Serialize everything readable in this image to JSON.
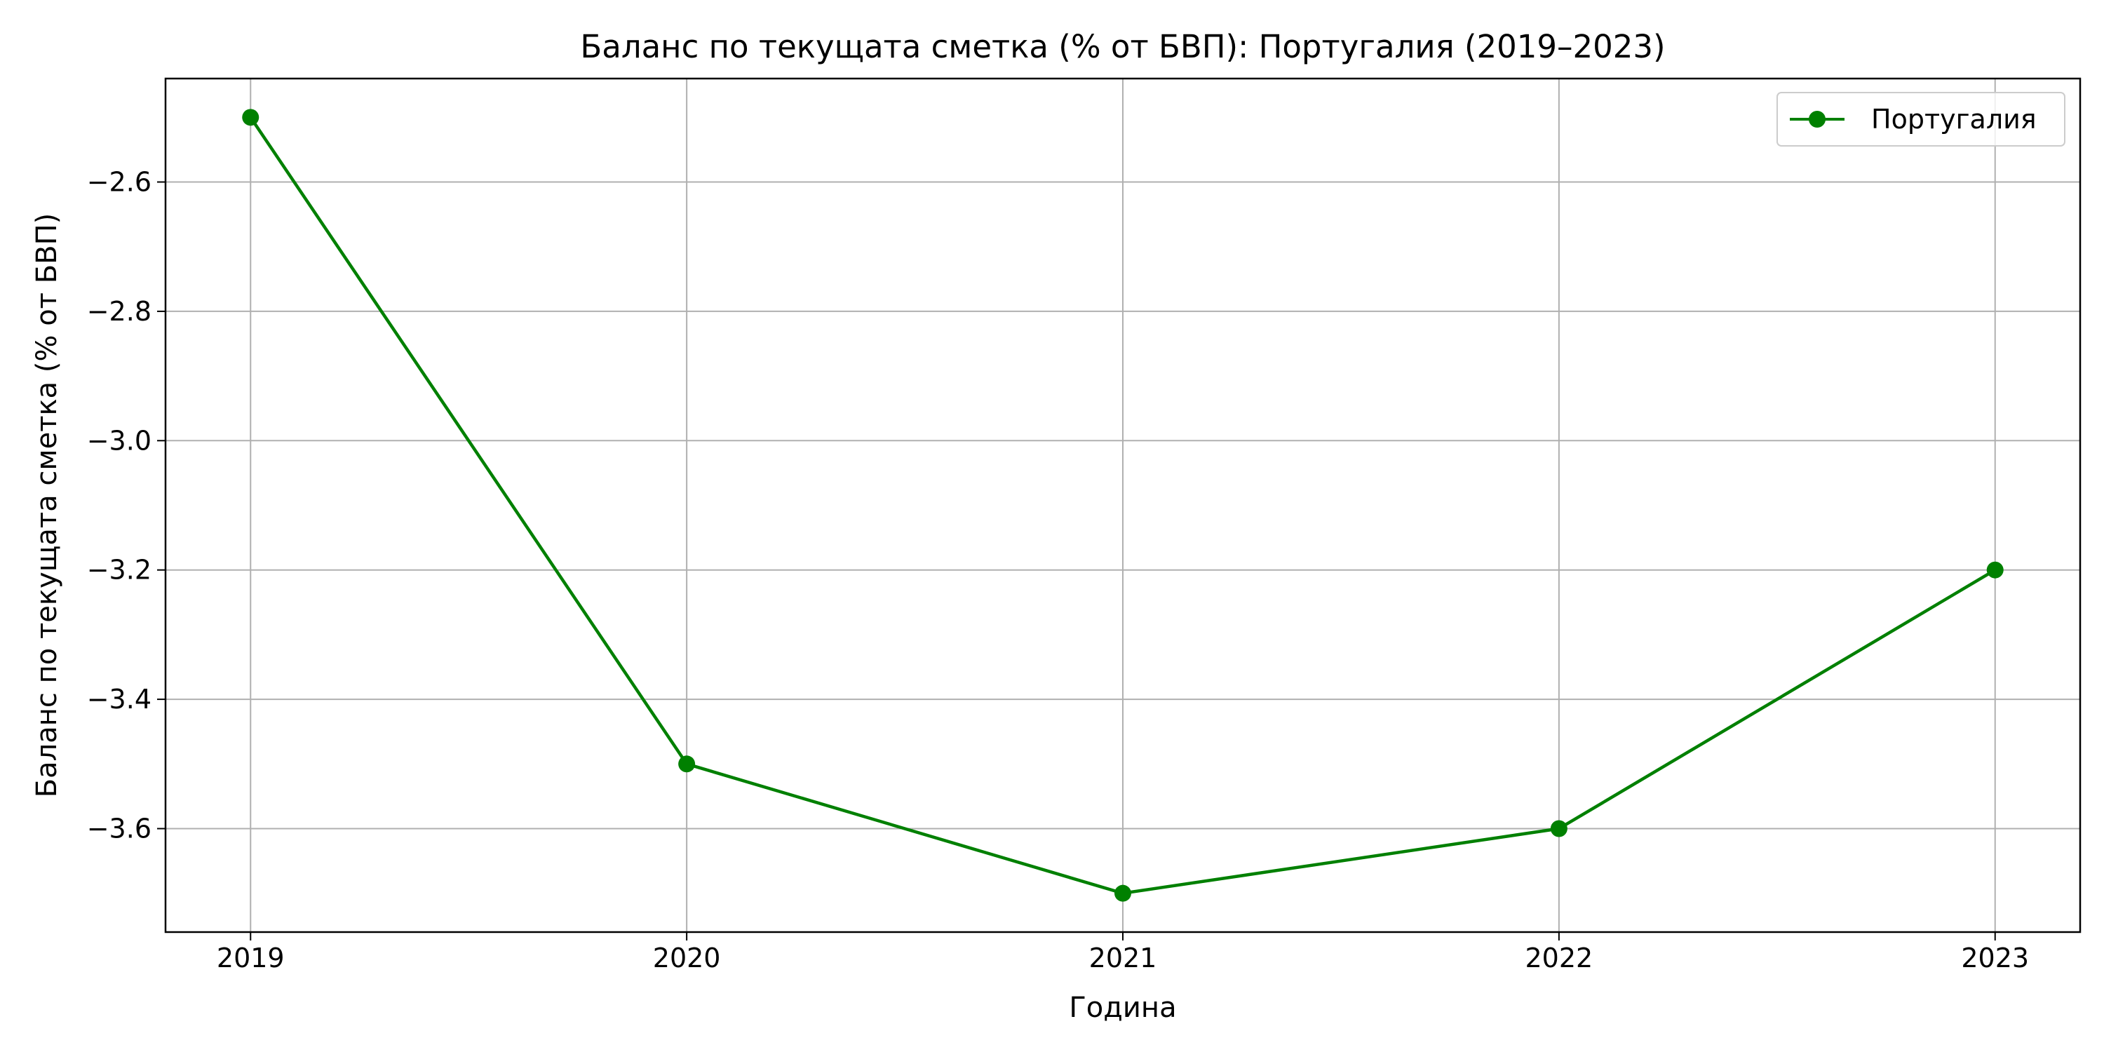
{
  "chart_data": {
    "type": "line",
    "title": "Баланс по текущата сметка (% от БВП): Португалия (2019–2023)",
    "xlabel": "Година",
    "ylabel": "Баланс по текущата сметка (% от БВП)",
    "x": [
      2019,
      2020,
      2021,
      2022,
      2023
    ],
    "x_tick_labels": [
      "2019",
      "2020",
      "2021",
      "2022",
      "2023"
    ],
    "y_ticks": [
      -2.6,
      -2.8,
      -3.0,
      -3.2,
      -3.4,
      -3.6
    ],
    "y_tick_labels": [
      "−2.6",
      "−2.8",
      "−3.0",
      "−3.2",
      "−3.4",
      "−3.6"
    ],
    "xlim": [
      2018.805,
      2023.195
    ],
    "ylim": [
      -3.76,
      -2.44
    ],
    "grid": true,
    "legend_position": "top-right",
    "series": [
      {
        "name": "Португалия",
        "color": "#008000",
        "marker": "circle",
        "values": [
          -2.5,
          -3.5,
          -3.7,
          -3.6,
          -3.2
        ]
      }
    ]
  }
}
